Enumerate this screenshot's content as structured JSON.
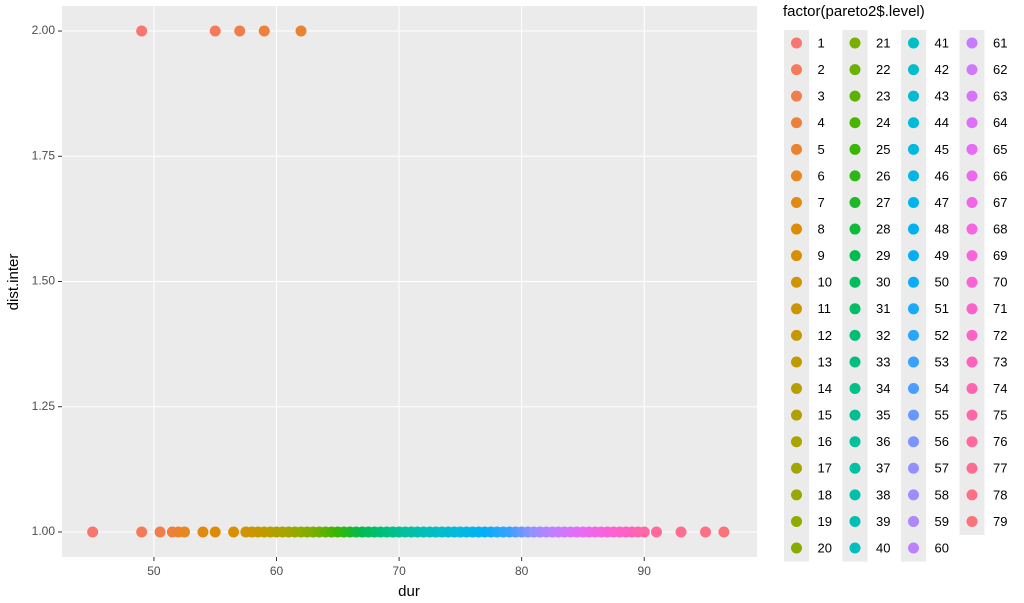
{
  "chart_data": {
    "type": "scatter",
    "x_label": "dur",
    "y_label": "dist.inter",
    "xlim": [
      42.5,
      99.2
    ],
    "ylim": [
      0.95,
      2.05
    ],
    "xticks": [
      50,
      60,
      70,
      80,
      90
    ],
    "yticks": [
      {
        "value": 1,
        "label": "1.00"
      },
      {
        "value": 1.25,
        "label": "1.25"
      },
      {
        "value": 1.5,
        "label": "1.50"
      },
      {
        "value": 1.75,
        "label": "1.75"
      },
      {
        "value": 2,
        "label": "2.00"
      }
    ],
    "grid": true,
    "legend_title": "factor(pareto2$.level)",
    "legend_position": "right",
    "series": [
      {
        "name": "1",
        "color": "#F8766D",
        "x": [
          45,
          49
        ],
        "values": [
          1,
          2
        ]
      },
      {
        "name": "2",
        "color": "#F47A5A",
        "x": [
          49,
          55
        ],
        "values": [
          1,
          2
        ]
      },
      {
        "name": "3",
        "color": "#F07D4A",
        "x": [
          50.5,
          57
        ],
        "values": [
          1,
          2
        ]
      },
      {
        "name": "4",
        "color": "#ED803B",
        "x": [
          51.5,
          59
        ],
        "values": [
          1,
          2
        ]
      },
      {
        "name": "5",
        "color": "#EA8331",
        "x": [
          52,
          62
        ],
        "values": [
          1,
          2
        ]
      },
      {
        "name": "6",
        "color": "#E68721",
        "x": [
          52.5
        ],
        "values": [
          1
        ]
      },
      {
        "name": "7",
        "color": "#E18A12",
        "x": [
          54
        ],
        "values": [
          1
        ]
      },
      {
        "name": "8",
        "color": "#DD8D05",
        "x": [
          55
        ],
        "values": [
          1
        ]
      },
      {
        "name": "9",
        "color": "#D89000",
        "x": [
          56.5
        ],
        "values": [
          1
        ]
      },
      {
        "name": "10",
        "color": "#D29300",
        "x": [
          57.5
        ],
        "values": [
          1
        ]
      },
      {
        "name": "11",
        "color": "#CC9500",
        "x": [
          58
        ],
        "values": [
          1
        ]
      },
      {
        "name": "12",
        "color": "#C69800",
        "x": [
          58.5
        ],
        "values": [
          1
        ]
      },
      {
        "name": "13",
        "color": "#C09B00",
        "x": [
          59
        ],
        "values": [
          1
        ]
      },
      {
        "name": "14",
        "color": "#B99E00",
        "x": [
          59.5
        ],
        "values": [
          1
        ]
      },
      {
        "name": "15",
        "color": "#B1A000",
        "x": [
          60
        ],
        "values": [
          1
        ]
      },
      {
        "name": "16",
        "color": "#AAA300",
        "x": [
          60.5
        ],
        "values": [
          1
        ]
      },
      {
        "name": "17",
        "color": "#A3A500",
        "x": [
          61
        ],
        "values": [
          1
        ]
      },
      {
        "name": "18",
        "color": "#99A700",
        "x": [
          61.5
        ],
        "values": [
          1
        ]
      },
      {
        "name": "19",
        "color": "#90AA00",
        "x": [
          62
        ],
        "values": [
          1
        ]
      },
      {
        "name": "20",
        "color": "#86AC00",
        "x": [
          62.5
        ],
        "values": [
          1
        ]
      },
      {
        "name": "21",
        "color": "#7CAE00",
        "x": [
          63
        ],
        "values": [
          1
        ]
      },
      {
        "name": "22",
        "color": "#6CB000",
        "x": [
          63.5
        ],
        "values": [
          1
        ]
      },
      {
        "name": "23",
        "color": "#5BB200",
        "x": [
          64
        ],
        "values": [
          1
        ]
      },
      {
        "name": "24",
        "color": "#4AB400",
        "x": [
          64.5
        ],
        "values": [
          1
        ]
      },
      {
        "name": "25",
        "color": "#39B600",
        "x": [
          65
        ],
        "values": [
          1
        ]
      },
      {
        "name": "26",
        "color": "#2BB714",
        "x": [
          65.5
        ],
        "values": [
          1
        ]
      },
      {
        "name": "27",
        "color": "#1CB827",
        "x": [
          66
        ],
        "values": [
          1
        ]
      },
      {
        "name": "28",
        "color": "#0EBA3A",
        "x": [
          66.5
        ],
        "values": [
          1
        ]
      },
      {
        "name": "29",
        "color": "#00BB4E",
        "x": [
          67
        ],
        "values": [
          1
        ]
      },
      {
        "name": "30",
        "color": "#00BC5A",
        "x": [
          67.5
        ],
        "values": [
          1
        ]
      },
      {
        "name": "31",
        "color": "#00BD66",
        "x": [
          68
        ],
        "values": [
          1
        ]
      },
      {
        "name": "32",
        "color": "#00BE71",
        "x": [
          68.5
        ],
        "values": [
          1
        ]
      },
      {
        "name": "33",
        "color": "#00BF7D",
        "x": [
          69
        ],
        "values": [
          1
        ]
      },
      {
        "name": "34",
        "color": "#00C087",
        "x": [
          69.5
        ],
        "values": [
          1
        ]
      },
      {
        "name": "35",
        "color": "#00C090",
        "x": [
          70
        ],
        "values": [
          1
        ]
      },
      {
        "name": "36",
        "color": "#00C19A",
        "x": [
          70.5
        ],
        "values": [
          1
        ]
      },
      {
        "name": "37",
        "color": "#00C1A3",
        "x": [
          71
        ],
        "values": [
          1
        ]
      },
      {
        "name": "38",
        "color": "#00C0AB",
        "x": [
          71.5
        ],
        "values": [
          1
        ]
      },
      {
        "name": "39",
        "color": "#00C0B4",
        "x": [
          72
        ],
        "values": [
          1
        ]
      },
      {
        "name": "40",
        "color": "#00BFBC",
        "x": [
          72.5
        ],
        "values": [
          1
        ]
      },
      {
        "name": "41",
        "color": "#00BFC4",
        "x": [
          73
        ],
        "values": [
          1
        ]
      },
      {
        "name": "42",
        "color": "#00BECB",
        "x": [
          73.5
        ],
        "values": [
          1
        ]
      },
      {
        "name": "43",
        "color": "#00BCD2",
        "x": [
          74
        ],
        "values": [
          1
        ]
      },
      {
        "name": "44",
        "color": "#00BBD9",
        "x": [
          74.5
        ],
        "values": [
          1
        ]
      },
      {
        "name": "45",
        "color": "#00BAE0",
        "x": [
          75
        ],
        "values": [
          1
        ]
      },
      {
        "name": "46",
        "color": "#00B7E6",
        "x": [
          75.5
        ],
        "values": [
          1
        ]
      },
      {
        "name": "47",
        "color": "#00B5EB",
        "x": [
          76
        ],
        "values": [
          1
        ]
      },
      {
        "name": "48",
        "color": "#00B2F1",
        "x": [
          76.5
        ],
        "values": [
          1
        ]
      },
      {
        "name": "49",
        "color": "#00B0F6",
        "x": [
          77
        ],
        "values": [
          1
        ]
      },
      {
        "name": "50",
        "color": "#0DACF8",
        "x": [
          77.5
        ],
        "values": [
          1
        ]
      },
      {
        "name": "51",
        "color": "#1BA9FA",
        "x": [
          78
        ],
        "values": [
          1
        ]
      },
      {
        "name": "52",
        "color": "#28A5FD",
        "x": [
          78.5
        ],
        "values": [
          1
        ]
      },
      {
        "name": "53",
        "color": "#35A2FF",
        "x": [
          79
        ],
        "values": [
          1
        ]
      },
      {
        "name": "54",
        "color": "#4D9DFF",
        "x": [
          79.5
        ],
        "values": [
          1
        ]
      },
      {
        "name": "55",
        "color": "#6599FF",
        "x": [
          80
        ],
        "values": [
          1
        ]
      },
      {
        "name": "56",
        "color": "#7D94FF",
        "x": [
          80.5
        ],
        "values": [
          1
        ]
      },
      {
        "name": "57",
        "color": "#9590FF",
        "x": [
          81
        ],
        "values": [
          1
        ]
      },
      {
        "name": "58",
        "color": "#A28BFF",
        "x": [
          81.5
        ],
        "values": [
          1
        ]
      },
      {
        "name": "59",
        "color": "#AE86FF",
        "x": [
          82
        ],
        "values": [
          1
        ]
      },
      {
        "name": "60",
        "color": "#BB81FF",
        "x": [
          82.5
        ],
        "values": [
          1
        ]
      },
      {
        "name": "61",
        "color": "#C77CFF",
        "x": [
          83
        ],
        "values": [
          1
        ]
      },
      {
        "name": "62",
        "color": "#CF78FC",
        "x": [
          83.5
        ],
        "values": [
          1
        ]
      },
      {
        "name": "63",
        "color": "#D774F9",
        "x": [
          84
        ],
        "values": [
          1
        ]
      },
      {
        "name": "64",
        "color": "#DF6FF6",
        "x": [
          84.5
        ],
        "values": [
          1
        ]
      },
      {
        "name": "65",
        "color": "#E76BF3",
        "x": [
          85
        ],
        "values": [
          1
        ]
      },
      {
        "name": "66",
        "color": "#EC69ED",
        "x": [
          85.5
        ],
        "values": [
          1
        ]
      },
      {
        "name": "67",
        "color": "#F166E7",
        "x": [
          86
        ],
        "values": [
          1
        ]
      },
      {
        "name": "68",
        "color": "#F564E1",
        "x": [
          86.5
        ],
        "values": [
          1
        ]
      },
      {
        "name": "69",
        "color": "#FA62DB",
        "x": [
          87
        ],
        "values": [
          1
        ]
      },
      {
        "name": "70",
        "color": "#FB62D3",
        "x": [
          87.5
        ],
        "values": [
          1
        ]
      },
      {
        "name": "71",
        "color": "#FC62CB",
        "x": [
          88
        ],
        "values": [
          1
        ]
      },
      {
        "name": "72",
        "color": "#FE62C4",
        "x": [
          88.5
        ],
        "values": [
          1
        ]
      },
      {
        "name": "73",
        "color": "#FF62BC",
        "x": [
          89
        ],
        "values": [
          1
        ]
      },
      {
        "name": "74",
        "color": "#FF64B1",
        "x": [
          89.5
        ],
        "values": [
          1
        ]
      },
      {
        "name": "75",
        "color": "#FF67A7",
        "x": [
          90
        ],
        "values": [
          1
        ]
      },
      {
        "name": "76",
        "color": "#FF699C",
        "x": [
          91
        ],
        "values": [
          1
        ]
      },
      {
        "name": "77",
        "color": "#FF6C91",
        "x": [
          93
        ],
        "values": [
          1
        ]
      },
      {
        "name": "78",
        "color": "#FD6F86",
        "x": [
          95
        ],
        "values": [
          1
        ]
      },
      {
        "name": "79",
        "color": "#FA737A",
        "x": [
          96.5
        ],
        "values": [
          1
        ]
      }
    ]
  }
}
